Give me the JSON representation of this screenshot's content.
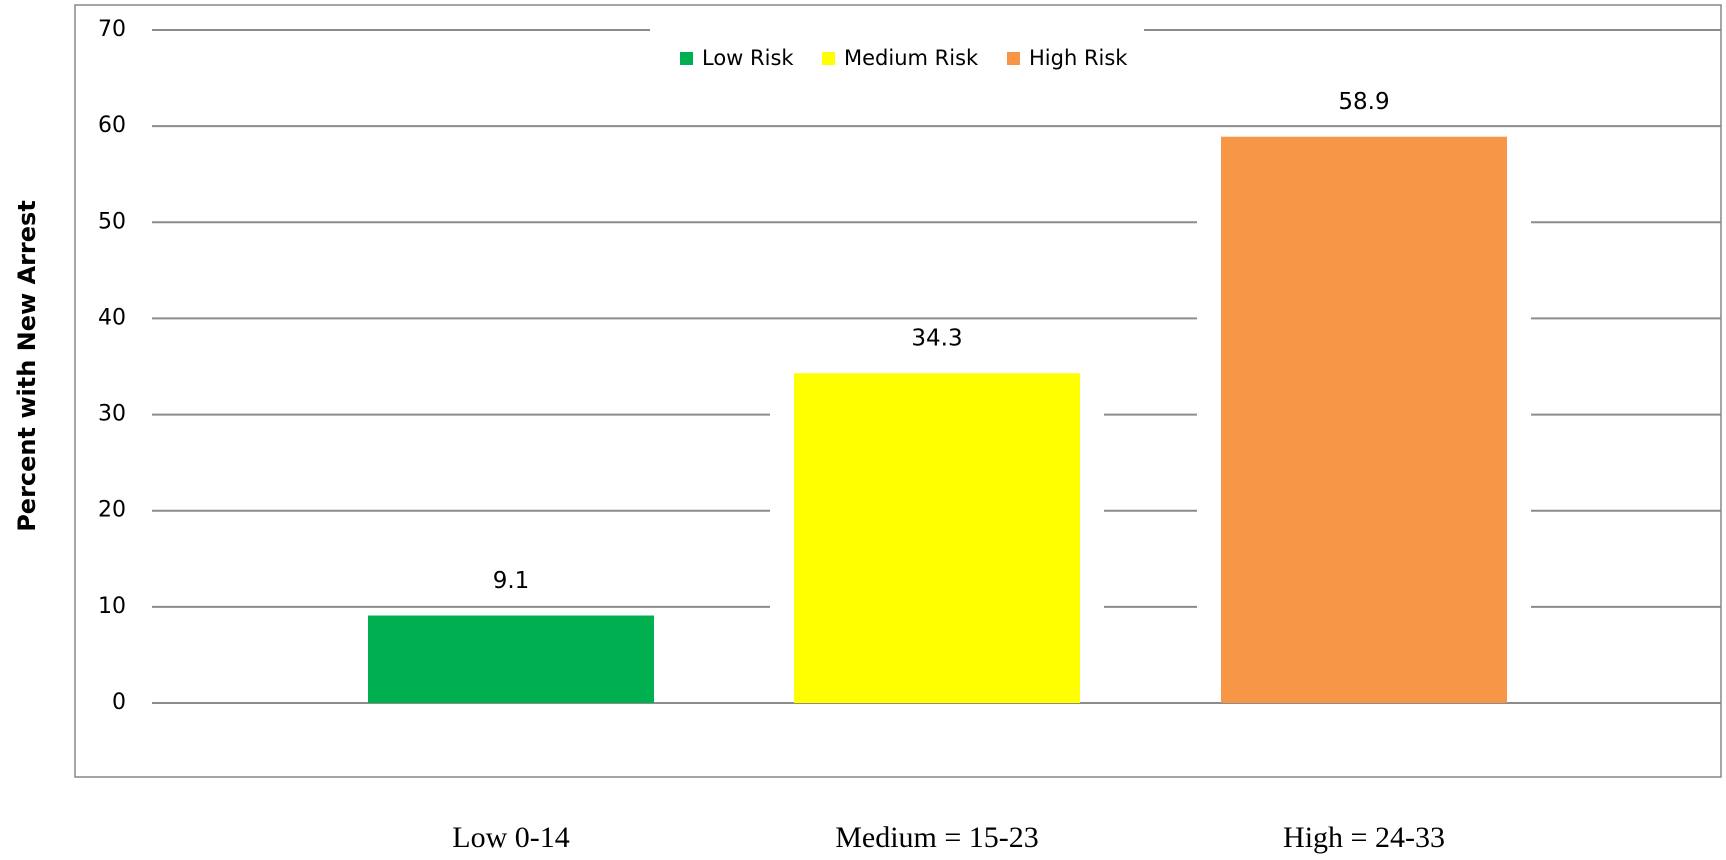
{
  "chart_data": {
    "type": "bar",
    "y_label": "Percent with New Arrest",
    "categories": [
      "Low 0-14",
      "Medium = 15-23",
      "High = 24-33"
    ],
    "values": [
      9.1,
      34.3,
      58.9
    ],
    "colors": [
      "#00b050",
      "#ffff00",
      "#f79646"
    ],
    "legend": [
      "Low Risk",
      "Medium Risk",
      "High Risk"
    ],
    "ylim": [
      0,
      70
    ],
    "yticks": [
      0,
      10,
      20,
      30,
      40,
      50,
      60,
      70
    ],
    "grid": true
  }
}
